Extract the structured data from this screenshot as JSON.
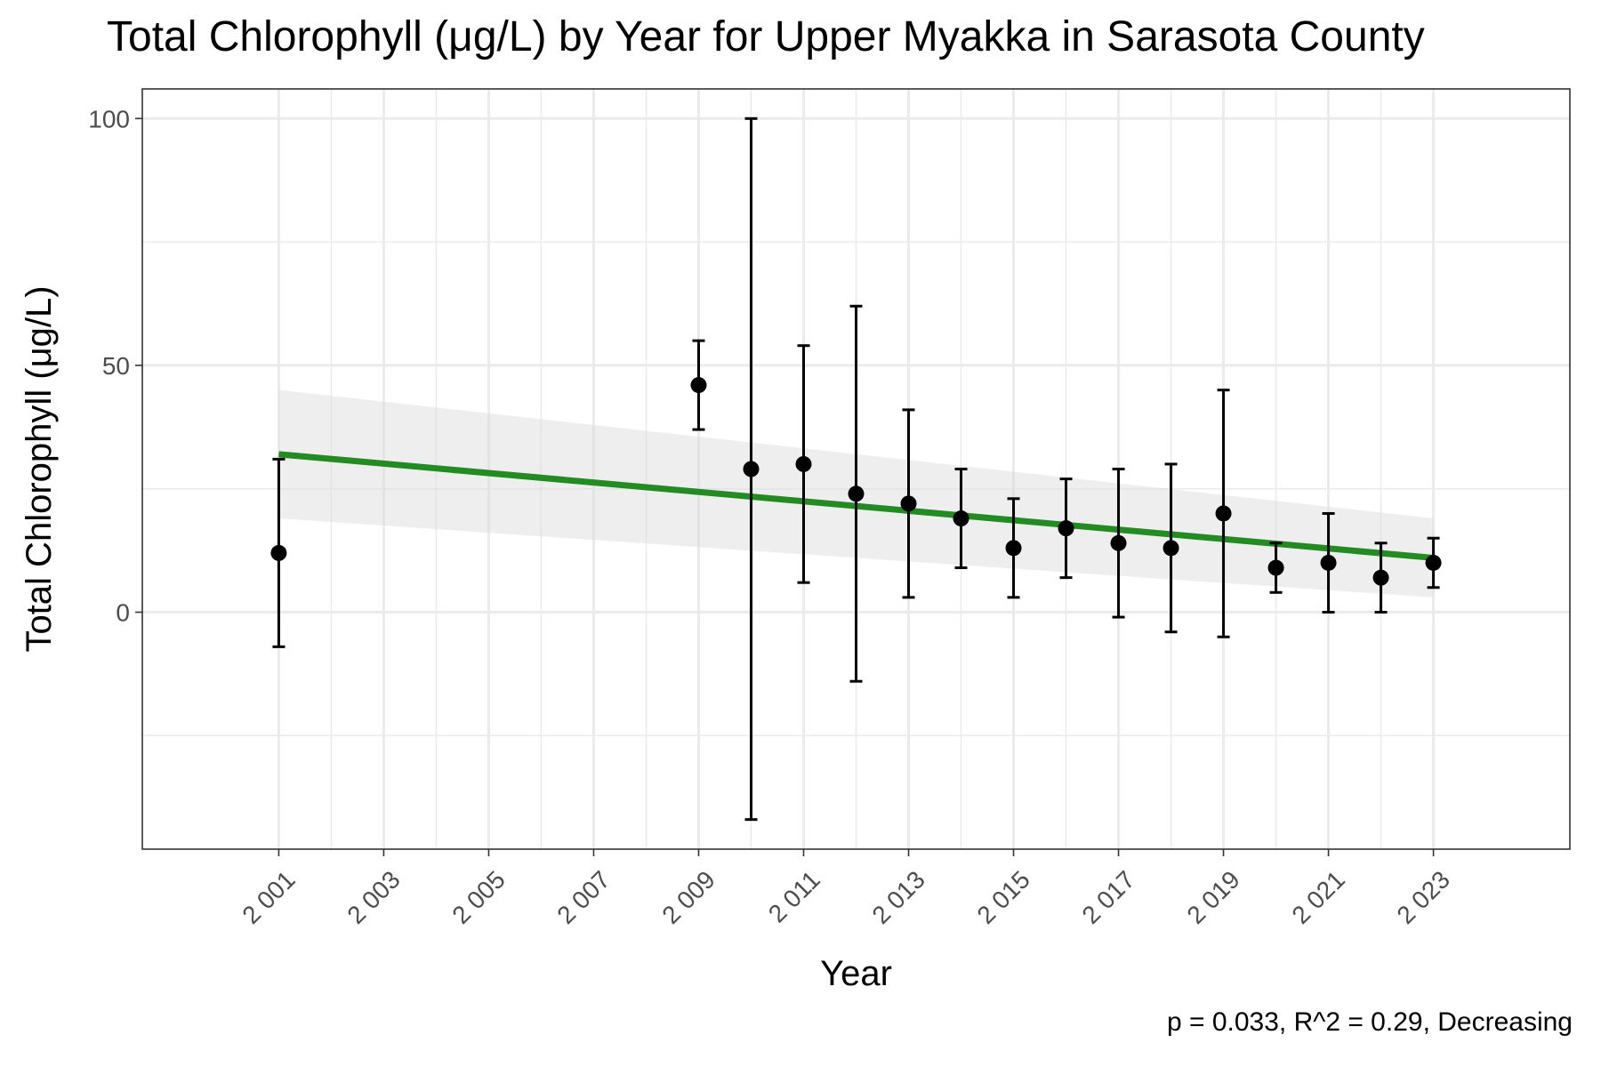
{
  "chart_data": {
    "type": "scatter",
    "title": "Total Chlorophyll (μg/L) by Year for Upper Myakka in Sarasota County",
    "xlabel": "Year",
    "ylabel": "Total Chlorophyll (μg/L)",
    "caption": "p = 0.033, R^2 = 0.29, Decreasing",
    "xlim": [
      1998.4,
      2025.6
    ],
    "ylim": [
      -48,
      106
    ],
    "x_ticks": [
      2001,
      2003,
      2005,
      2007,
      2009,
      2011,
      2013,
      2015,
      2017,
      2019,
      2021,
      2023
    ],
    "x_tick_labels": [
      "2 001",
      "2 003",
      "2 005",
      "2 007",
      "2 009",
      "2 011",
      "2 013",
      "2 015",
      "2 017",
      "2 019",
      "2 021",
      "2 023"
    ],
    "y_ticks": [
      0,
      50,
      100
    ],
    "y_tick_labels": [
      "0",
      "50",
      "100"
    ],
    "grid": true,
    "points": [
      {
        "x": 2001,
        "y": 12,
        "lower": -7,
        "upper": 31
      },
      {
        "x": 2009,
        "y": 46,
        "lower": 37,
        "upper": 55
      },
      {
        "x": 2010,
        "y": 29,
        "lower": -42,
        "upper": 100
      },
      {
        "x": 2011,
        "y": 30,
        "lower": 6,
        "upper": 54
      },
      {
        "x": 2012,
        "y": 24,
        "lower": -14,
        "upper": 62
      },
      {
        "x": 2013,
        "y": 22,
        "lower": 3,
        "upper": 41
      },
      {
        "x": 2014,
        "y": 19,
        "lower": 9,
        "upper": 29
      },
      {
        "x": 2015,
        "y": 13,
        "lower": 3,
        "upper": 23
      },
      {
        "x": 2016,
        "y": 17,
        "lower": 7,
        "upper": 27
      },
      {
        "x": 2017,
        "y": 14,
        "lower": -1,
        "upper": 29
      },
      {
        "x": 2018,
        "y": 13,
        "lower": -4,
        "upper": 30
      },
      {
        "x": 2019,
        "y": 20,
        "lower": -5,
        "upper": 45
      },
      {
        "x": 2020,
        "y": 9,
        "lower": 4,
        "upper": 14
      },
      {
        "x": 2021,
        "y": 10,
        "lower": 0,
        "upper": 20
      },
      {
        "x": 2022,
        "y": 7,
        "lower": 0,
        "upper": 14
      },
      {
        "x": 2023,
        "y": 10,
        "lower": 5,
        "upper": 15
      }
    ],
    "trend": {
      "x": [
        2001,
        2023
      ],
      "y": [
        32,
        11
      ],
      "ci_lower": [
        19,
        3
      ],
      "ci_upper": [
        45,
        19
      ],
      "color": "#228B22",
      "ribbon_color": "#d9d9d9"
    }
  }
}
